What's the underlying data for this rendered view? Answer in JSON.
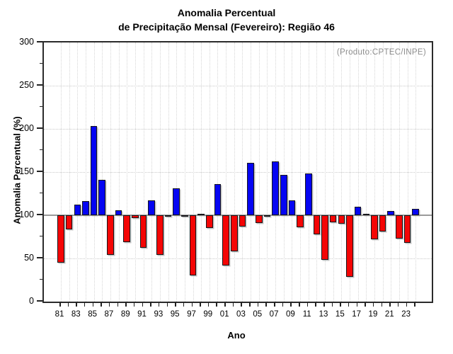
{
  "chart_data": {
    "type": "bar",
    "title_line1": "Anomalia Percentual",
    "title_line2": "de Precipitação Mensal (Fevereiro): Região 46",
    "annotation": "(Produto:CPTEC/INPE)",
    "xlabel": "Ano",
    "ylabel": "Anomalia Percentual (%)",
    "ylim": [
      0,
      300
    ],
    "yticks": [
      0,
      50,
      100,
      150,
      200,
      250,
      300
    ],
    "baseline": 100,
    "grid": "dotted horizontal at 50/150/200/250 and vertical at every year",
    "legend": "none",
    "colors": {
      "above_baseline": "#0505f2",
      "below_baseline": "#f40505",
      "baseline_line": "#9a9a9a",
      "annotation_text": "#8e8e8e"
    },
    "categories": [
      "81",
      "82",
      "83",
      "84",
      "85",
      "86",
      "87",
      "88",
      "89",
      "90",
      "91",
      "92",
      "93",
      "94",
      "95",
      "96",
      "97",
      "98",
      "99",
      "00",
      "01",
      "02",
      "03",
      "04",
      "05",
      "06",
      "07",
      "08",
      "09",
      "10",
      "11",
      "12",
      "13",
      "14",
      "15",
      "16",
      "17",
      "18",
      "19",
      "20",
      "21",
      "22",
      "23",
      "24"
    ],
    "values": [
      45,
      84,
      112,
      116,
      203,
      141,
      54,
      106,
      69,
      97,
      62,
      117,
      54,
      98,
      131,
      98,
      30,
      102,
      85,
      136,
      42,
      58,
      87,
      161,
      91,
      99,
      162,
      147,
      117,
      86,
      148,
      78,
      48,
      92,
      90,
      29,
      110,
      102,
      72,
      81,
      105,
      73,
      68,
      107
    ],
    "x_tick_labels_shown": [
      "81",
      "83",
      "85",
      "87",
      "89",
      "91",
      "93",
      "95",
      "97",
      "99",
      "01",
      "03",
      "05",
      "07",
      "09",
      "11",
      "13",
      "15",
      "17",
      "19",
      "21",
      "23"
    ]
  }
}
